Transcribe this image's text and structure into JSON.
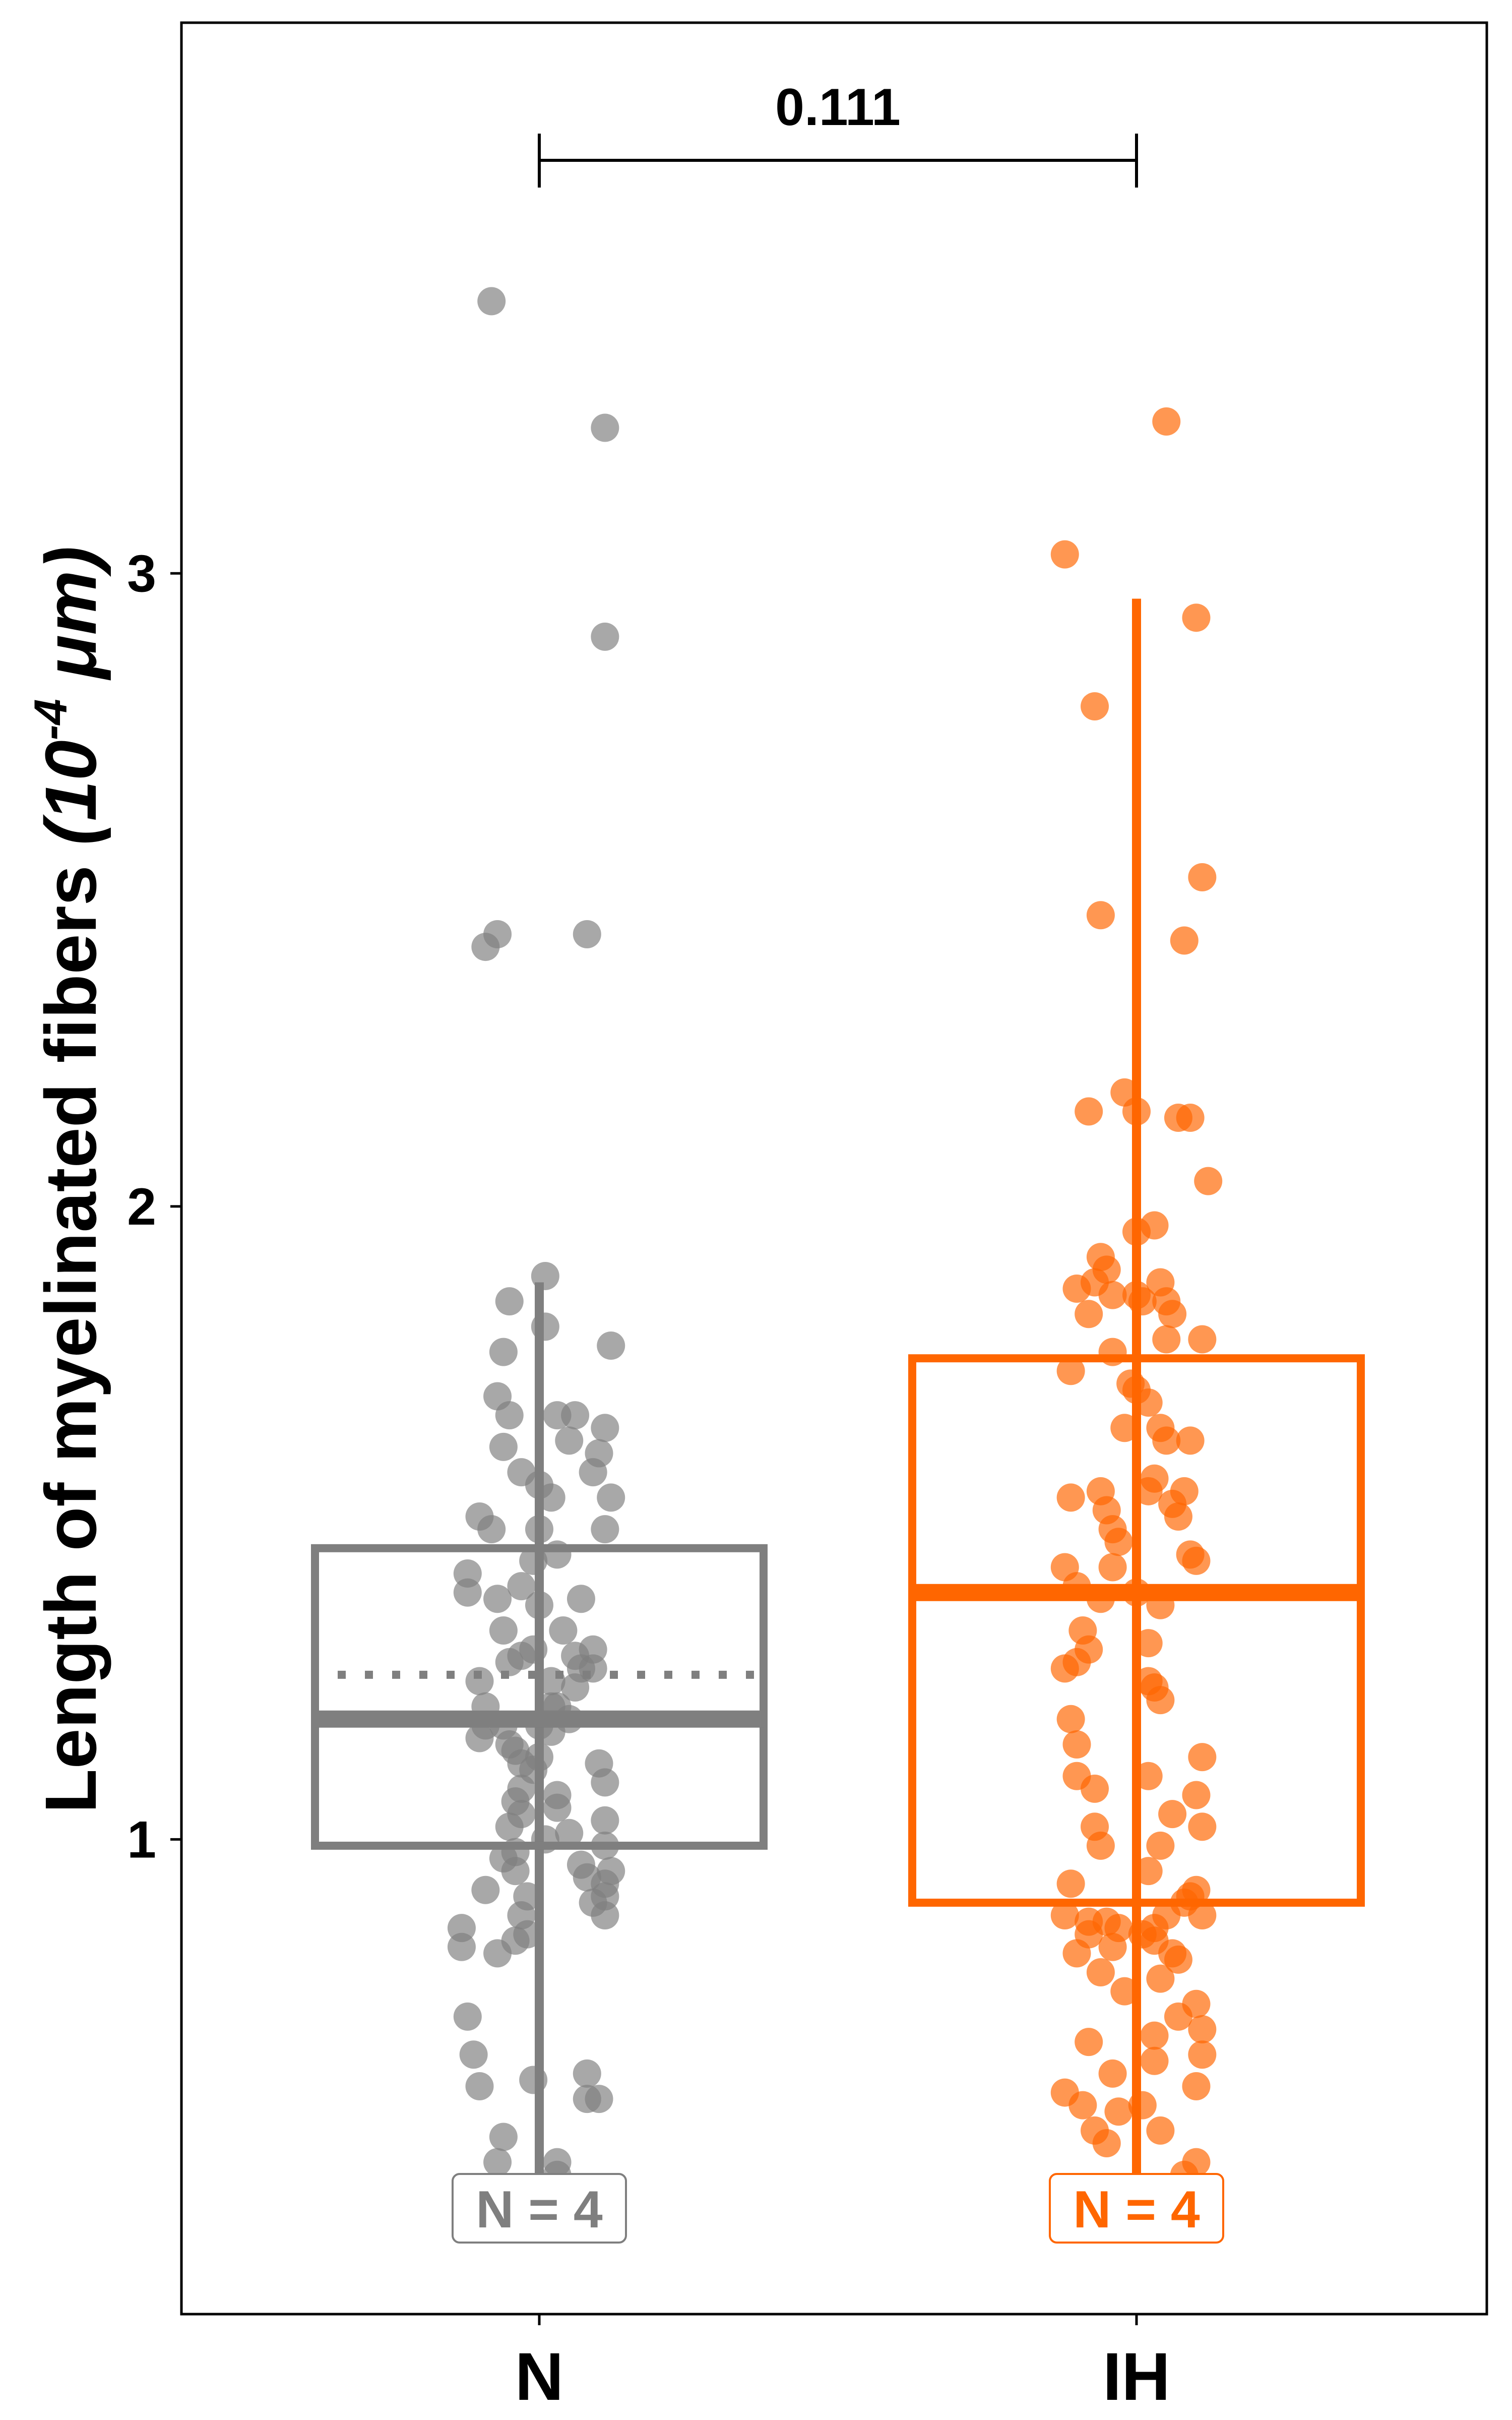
{
  "chart_data": {
    "type": "box-strip",
    "ylabel_main": "Length of myelinated fibers ",
    "ylabel_unit_pre": "(10",
    "ylabel_unit_exp": "-4",
    "ylabel_unit_post": " μm)",
    "xlabel": "",
    "ylim": [
      0.25,
      3.87
    ],
    "y_ticks": [
      1,
      2,
      3
    ],
    "y_tick_labels": [
      "1",
      "2",
      "3"
    ],
    "grid": false,
    "legend": "none",
    "categories": [
      "N",
      "IH"
    ],
    "comparison": {
      "between": [
        "N",
        "IH"
      ],
      "label": "0.111"
    },
    "series": [
      {
        "name": "N",
        "color": "#7f7f7f",
        "n_label": "N = 4",
        "box": {
          "q1": 0.99,
          "median": 1.19,
          "q3": 1.46,
          "whisker_low": 0.45,
          "whisker_high": 1.88,
          "mean": 1.26
        },
        "points": [
          [
            -0.08,
            3.43
          ],
          [
            0.11,
            3.23
          ],
          [
            0.11,
            2.9
          ],
          [
            -0.07,
            2.43
          ],
          [
            -0.09,
            2.41
          ],
          [
            0.08,
            2.43
          ],
          [
            0.01,
            1.89
          ],
          [
            -0.05,
            1.85
          ],
          [
            0.01,
            1.81
          ],
          [
            0.12,
            1.78
          ],
          [
            -0.06,
            1.77
          ],
          [
            -0.07,
            1.7
          ],
          [
            -0.05,
            1.67
          ],
          [
            0.03,
            1.67
          ],
          [
            0.06,
            1.67
          ],
          [
            0.11,
            1.65
          ],
          [
            -0.06,
            1.62
          ],
          [
            0.05,
            1.63
          ],
          [
            0.1,
            1.61
          ],
          [
            0.09,
            1.58
          ],
          [
            -0.03,
            1.58
          ],
          [
            0.0,
            1.56
          ],
          [
            0.02,
            1.54
          ],
          [
            0.12,
            1.54
          ],
          [
            -0.1,
            1.51
          ],
          [
            -0.08,
            1.49
          ],
          [
            0.0,
            1.49
          ],
          [
            0.11,
            1.49
          ],
          [
            -0.01,
            1.44
          ],
          [
            0.03,
            1.45
          ],
          [
            -0.12,
            1.42
          ],
          [
            -0.03,
            1.4
          ],
          [
            -0.12,
            1.39
          ],
          [
            -0.07,
            1.38
          ],
          [
            0.0,
            1.37
          ],
          [
            0.07,
            1.38
          ],
          [
            -0.06,
            1.33
          ],
          [
            0.04,
            1.33
          ],
          [
            -0.01,
            1.3
          ],
          [
            0.09,
            1.3
          ],
          [
            -0.05,
            1.28
          ],
          [
            -0.03,
            1.29
          ],
          [
            0.06,
            1.29
          ],
          [
            0.07,
            1.27
          ],
          [
            0.09,
            1.27
          ],
          [
            0.02,
            1.25
          ],
          [
            -0.1,
            1.25
          ],
          [
            0.06,
            1.24
          ],
          [
            -0.09,
            1.21
          ],
          [
            0.02,
            1.21
          ],
          [
            0.03,
            1.21
          ],
          [
            0.05,
            1.19
          ],
          [
            -0.09,
            1.18
          ],
          [
            -0.06,
            1.18
          ],
          [
            0.0,
            1.18
          ],
          [
            0.02,
            1.17
          ],
          [
            -0.1,
            1.16
          ],
          [
            -0.05,
            1.15
          ],
          [
            -0.04,
            1.14
          ],
          [
            0.0,
            1.13
          ],
          [
            0.1,
            1.12
          ],
          [
            -0.03,
            1.12
          ],
          [
            -0.01,
            1.11
          ],
          [
            0.11,
            1.09
          ],
          [
            -0.03,
            1.08
          ],
          [
            0.03,
            1.07
          ],
          [
            -0.04,
            1.06
          ],
          [
            0.03,
            1.05
          ],
          [
            -0.03,
            1.04
          ],
          [
            0.11,
            1.03
          ],
          [
            -0.05,
            1.02
          ],
          [
            0.05,
            1.01
          ],
          [
            0.01,
            1.0
          ],
          [
            0.11,
            0.99
          ],
          [
            -0.04,
            0.98
          ],
          [
            -0.06,
            0.97
          ],
          [
            0.07,
            0.96
          ],
          [
            0.12,
            0.95
          ],
          [
            -0.04,
            0.95
          ],
          [
            0.08,
            0.94
          ],
          [
            0.11,
            0.93
          ],
          [
            -0.09,
            0.92
          ],
          [
            -0.02,
            0.91
          ],
          [
            0.11,
            0.91
          ],
          [
            0.09,
            0.9
          ],
          [
            -0.03,
            0.88
          ],
          [
            0.11,
            0.88
          ],
          [
            -0.13,
            0.86
          ],
          [
            -0.02,
            0.85
          ],
          [
            -0.13,
            0.83
          ],
          [
            -0.07,
            0.82
          ],
          [
            -0.04,
            0.84
          ],
          [
            -0.12,
            0.72
          ],
          [
            -0.11,
            0.66
          ],
          [
            0.08,
            0.63
          ],
          [
            -0.1,
            0.61
          ],
          [
            -0.01,
            0.62
          ],
          [
            0.1,
            0.59
          ],
          [
            0.08,
            0.59
          ],
          [
            -0.06,
            0.53
          ],
          [
            0.03,
            0.49
          ],
          [
            -0.07,
            0.49
          ],
          [
            0.03,
            0.47
          ]
        ]
      },
      {
        "name": "IH",
        "color": "#ff6600",
        "n_label": "N = 4",
        "box": {
          "q1": 0.9,
          "median": 1.39,
          "q3": 1.76,
          "whisker_low": 0.44,
          "whisker_high": 2.96
        },
        "points": [
          [
            0.05,
            3.24
          ],
          [
            -0.12,
            3.03
          ],
          [
            0.1,
            2.93
          ],
          [
            -0.07,
            2.79
          ],
          [
            0.11,
            2.52
          ],
          [
            -0.06,
            2.46
          ],
          [
            0.08,
            2.42
          ],
          [
            -0.02,
            2.18
          ],
          [
            -0.08,
            2.15
          ],
          [
            0.0,
            2.15
          ],
          [
            0.07,
            2.14
          ],
          [
            0.09,
            2.14
          ],
          [
            0.12,
            2.04
          ],
          [
            0.03,
            1.97
          ],
          [
            0.0,
            1.96
          ],
          [
            -0.06,
            1.92
          ],
          [
            -0.05,
            1.9
          ],
          [
            -0.07,
            1.88
          ],
          [
            0.04,
            1.88
          ],
          [
            -0.1,
            1.87
          ],
          [
            -0.04,
            1.86
          ],
          [
            0.0,
            1.86
          ],
          [
            0.05,
            1.85
          ],
          [
            0.01,
            1.85
          ],
          [
            0.06,
            1.83
          ],
          [
            -0.08,
            1.83
          ],
          [
            0.11,
            1.79
          ],
          [
            0.05,
            1.79
          ],
          [
            -0.04,
            1.77
          ],
          [
            -0.11,
            1.74
          ],
          [
            -0.01,
            1.72
          ],
          [
            0.0,
            1.71
          ],
          [
            0.02,
            1.69
          ],
          [
            -0.02,
            1.65
          ],
          [
            0.04,
            1.65
          ],
          [
            0.09,
            1.63
          ],
          [
            0.05,
            1.63
          ],
          [
            0.03,
            1.57
          ],
          [
            0.02,
            1.55
          ],
          [
            -0.06,
            1.55
          ],
          [
            0.08,
            1.55
          ],
          [
            -0.11,
            1.54
          ],
          [
            0.06,
            1.53
          ],
          [
            -0.05,
            1.52
          ],
          [
            0.07,
            1.51
          ],
          [
            -0.04,
            1.49
          ],
          [
            -0.03,
            1.47
          ],
          [
            0.09,
            1.45
          ],
          [
            0.1,
            1.44
          ],
          [
            -0.12,
            1.43
          ],
          [
            -0.04,
            1.43
          ],
          [
            -0.1,
            1.4
          ],
          [
            0.0,
            1.39
          ],
          [
            -0.06,
            1.38
          ],
          [
            0.04,
            1.37
          ],
          [
            -0.09,
            1.33
          ],
          [
            0.02,
            1.31
          ],
          [
            -0.08,
            1.3
          ],
          [
            -0.1,
            1.28
          ],
          [
            -0.12,
            1.27
          ],
          [
            0.02,
            1.25
          ],
          [
            0.03,
            1.24
          ],
          [
            0.04,
            1.22
          ],
          [
            -0.11,
            1.19
          ],
          [
            -0.1,
            1.15
          ],
          [
            0.11,
            1.13
          ],
          [
            -0.1,
            1.1
          ],
          [
            0.02,
            1.1
          ],
          [
            -0.07,
            1.08
          ],
          [
            0.1,
            1.07
          ],
          [
            0.06,
            1.04
          ],
          [
            0.11,
            1.02
          ],
          [
            -0.07,
            1.02
          ],
          [
            0.04,
            0.99
          ],
          [
            -0.06,
            0.99
          ],
          [
            0.02,
            0.95
          ],
          [
            -0.11,
            0.93
          ],
          [
            0.1,
            0.92
          ],
          [
            0.09,
            0.91
          ],
          [
            0.08,
            0.9
          ],
          [
            0.11,
            0.88
          ],
          [
            0.05,
            0.88
          ],
          [
            -0.12,
            0.88
          ],
          [
            -0.08,
            0.87
          ],
          [
            -0.05,
            0.87
          ],
          [
            -0.03,
            0.86
          ],
          [
            0.03,
            0.86
          ],
          [
            -0.08,
            0.85
          ],
          [
            0.01,
            0.85
          ],
          [
            0.03,
            0.84
          ],
          [
            -0.04,
            0.83
          ],
          [
            -0.1,
            0.82
          ],
          [
            0.06,
            0.82
          ],
          [
            0.07,
            0.81
          ],
          [
            -0.06,
            0.79
          ],
          [
            0.04,
            0.78
          ],
          [
            -0.02,
            0.76
          ],
          [
            0.1,
            0.74
          ],
          [
            0.07,
            0.72
          ],
          [
            0.11,
            0.7
          ],
          [
            0.03,
            0.69
          ],
          [
            -0.08,
            0.68
          ],
          [
            0.11,
            0.66
          ],
          [
            0.03,
            0.65
          ],
          [
            -0.04,
            0.63
          ],
          [
            0.1,
            0.61
          ],
          [
            -0.12,
            0.6
          ],
          [
            -0.09,
            0.58
          ],
          [
            0.01,
            0.58
          ],
          [
            -0.03,
            0.57
          ],
          [
            0.04,
            0.54
          ],
          [
            -0.07,
            0.54
          ],
          [
            -0.05,
            0.52
          ],
          [
            0.1,
            0.49
          ],
          [
            0.08,
            0.47
          ],
          [
            0.0,
            0.42
          ]
        ]
      }
    ]
  }
}
